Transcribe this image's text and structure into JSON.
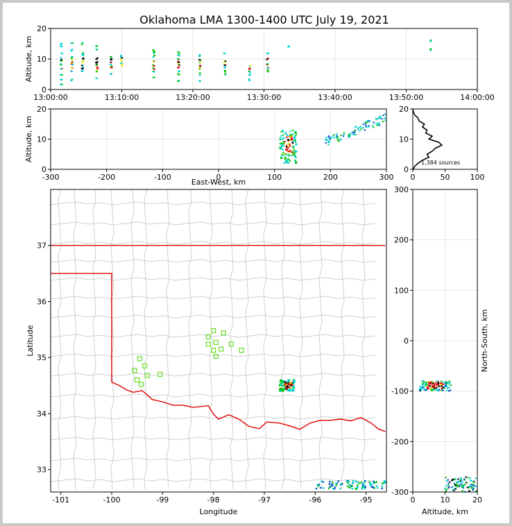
{
  "title": "Oklahoma LMA 1300-1400 UTC July 19, 2021",
  "chart_data": [
    {
      "id": "time_altitude",
      "type": "scatter",
      "ylabel": "Altitude, km",
      "xlim": [
        "13:00:00",
        "14:00:00"
      ],
      "ylim": [
        0,
        20
      ],
      "xticks": [
        "13:00:00",
        "13:10:00",
        "13:20:00",
        "13:30:00",
        "13:40:00",
        "13:50:00",
        "14:00:00"
      ],
      "yticks": [
        "0",
        "10",
        "20"
      ],
      "grid": true,
      "source_columns_minutes": [
        {
          "t": 1.5,
          "alts": [
            2,
            3,
            5,
            7,
            8,
            9,
            10,
            12,
            14,
            15
          ]
        },
        {
          "t": 3.0,
          "alts": [
            3,
            6,
            7,
            8,
            9,
            10,
            11,
            13,
            15
          ]
        },
        {
          "t": 4.5,
          "alts": [
            6,
            7,
            8,
            9,
            10,
            11,
            12,
            15
          ]
        },
        {
          "t": 6.5,
          "alts": [
            4,
            6,
            7,
            8,
            9,
            10,
            13,
            14
          ]
        },
        {
          "t": 8.5,
          "alts": [
            5,
            7,
            8,
            9,
            10,
            11
          ]
        },
        {
          "t": 10.0,
          "alts": [
            8,
            9,
            10,
            11
          ]
        },
        {
          "t": 14.5,
          "alts": [
            4,
            6,
            7,
            8,
            9,
            11,
            12,
            13
          ]
        },
        {
          "t": 18.0,
          "alts": [
            3,
            5,
            6,
            7,
            8,
            9,
            10,
            11,
            12
          ]
        },
        {
          "t": 21.0,
          "alts": [
            3,
            5,
            7,
            8,
            9,
            10,
            11
          ]
        },
        {
          "t": 24.5,
          "alts": [
            5,
            6,
            7,
            8,
            9,
            12
          ]
        },
        {
          "t": 28.0,
          "alts": [
            3,
            5,
            6,
            7,
            8
          ]
        },
        {
          "t": 30.5,
          "alts": [
            6,
            7,
            8,
            10,
            12
          ]
        },
        {
          "t": 33.5,
          "alts": [
            14
          ]
        },
        {
          "t": 53.5,
          "alts": [
            13,
            16
          ]
        }
      ]
    },
    {
      "id": "ew_altitude",
      "type": "scatter",
      "xlabel": "East-West, km",
      "ylabel": "Altitude, km",
      "xlim": [
        -300,
        300
      ],
      "ylim": [
        0,
        20
      ],
      "xticks": [
        "-300",
        "-200",
        "-100",
        "0",
        "100",
        "200",
        "300"
      ],
      "yticks": [
        "0",
        "10",
        "20"
      ],
      "grid": true,
      "clusters": [
        {
          "x": [
            110,
            140
          ],
          "y": [
            2,
            13
          ],
          "colors": "red/yellow core, cyan/green edges"
        },
        {
          "x": [
            190,
            300
          ],
          "y": [
            9,
            18
          ],
          "colors": "cyan/green"
        }
      ]
    },
    {
      "id": "altitude_histogram",
      "type": "line",
      "xlim": [
        0,
        100
      ],
      "ylim": [
        0,
        20
      ],
      "xticks": [
        "0",
        "50",
        "100"
      ],
      "yticks": [
        "0",
        "10",
        "20"
      ],
      "annotation": "1,384 sources",
      "profile": [
        [
          0.5,
          0
        ],
        [
          3,
          1
        ],
        [
          8,
          2
        ],
        [
          15,
          3
        ],
        [
          25,
          4
        ],
        [
          22,
          5
        ],
        [
          30,
          6
        ],
        [
          35,
          7
        ],
        [
          45,
          8
        ],
        [
          40,
          9
        ],
        [
          25,
          10
        ],
        [
          30,
          11
        ],
        [
          20,
          12
        ],
        [
          22,
          13
        ],
        [
          15,
          14
        ],
        [
          18,
          15
        ],
        [
          10,
          16
        ],
        [
          8,
          17
        ],
        [
          3,
          18
        ],
        [
          1,
          19
        ],
        [
          0,
          20
        ]
      ]
    },
    {
      "id": "plan_view",
      "type": "scatter",
      "xlabel": "Longitude",
      "ylabel": "Latitude",
      "xlim": [
        -101.2,
        -94.6
      ],
      "ylim": [
        32.6,
        38.0
      ],
      "xticks": [
        "-101",
        "-100",
        "-99",
        "-98",
        "-97",
        "-96",
        "-95"
      ],
      "yticks": [
        "33",
        "34",
        "35",
        "36",
        "37"
      ],
      "stations": [
        [
          -99.45,
          34.98
        ],
        [
          -99.35,
          34.85
        ],
        [
          -99.55,
          34.77
        ],
        [
          -99.3,
          34.68
        ],
        [
          -99.5,
          34.6
        ],
        [
          -99.42,
          34.52
        ],
        [
          -99.05,
          34.7
        ],
        [
          -98.0,
          35.48
        ],
        [
          -97.8,
          35.44
        ],
        [
          -98.1,
          35.37
        ],
        [
          -97.95,
          35.27
        ],
        [
          -98.1,
          35.24
        ],
        [
          -97.65,
          35.24
        ],
        [
          -97.85,
          35.15
        ],
        [
          -98.0,
          35.13
        ],
        [
          -97.45,
          35.13
        ],
        [
          -97.95,
          35.02
        ]
      ],
      "clusters": [
        {
          "lon": [
            -96.7,
            -96.4
          ],
          "lat": [
            34.4,
            34.6
          ],
          "colors": "red/yellow core, cyan/green edges"
        },
        {
          "lon": [
            -96.0,
            -94.6
          ],
          "lat": [
            32.65,
            32.8
          ],
          "colors": "cyan/green"
        }
      ]
    },
    {
      "id": "altitude_ns",
      "type": "scatter",
      "xlabel": "Altitude, km",
      "ylabel": "North-South, km",
      "xlim": [
        0,
        20
      ],
      "ylim": [
        -300,
        300
      ],
      "xticks": [
        "0",
        "10",
        "20"
      ],
      "yticks": [
        "-300",
        "-200",
        "-100",
        "0",
        "100",
        "200",
        "300"
      ],
      "grid": true,
      "clusters": [
        {
          "x": [
            2,
            12
          ],
          "y": [
            -100,
            -80
          ],
          "colors": "red/yellow core, cyan/green edges"
        },
        {
          "x": [
            10,
            20
          ],
          "y": [
            -300,
            -270
          ],
          "colors": "cyan/green"
        }
      ]
    }
  ]
}
